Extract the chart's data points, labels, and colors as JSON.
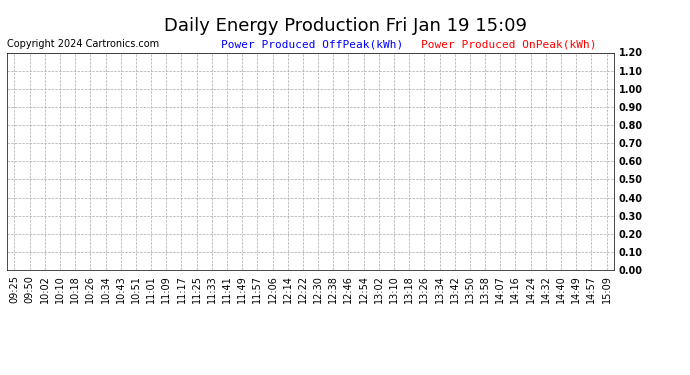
{
  "title": "Daily Energy Production Fri Jan 19 15:09",
  "copyright_text": "Copyright 2024 Cartronics.com",
  "legend_offpeak_label": "Power Produced OffPeak(kWh)",
  "legend_onpeak_label": "Power Produced OnPeak(kWh)",
  "legend_offpeak_color": "#0000ff",
  "legend_onpeak_color": "#ff0000",
  "ylim": [
    0.0,
    1.2
  ],
  "yticks": [
    0.0,
    0.1,
    0.2,
    0.3,
    0.4,
    0.5,
    0.6,
    0.7,
    0.8,
    0.9,
    1.0,
    1.1,
    1.2
  ],
  "ytick_labels": [
    "0.00",
    "0.10",
    "0.20",
    "0.30",
    "0.40",
    "0.50",
    "0.60",
    "0.70",
    "0.80",
    "0.90",
    "1.00",
    "1.10",
    "1.20"
  ],
  "x_labels": [
    "09:25",
    "09:50",
    "10:02",
    "10:10",
    "10:18",
    "10:26",
    "10:34",
    "10:43",
    "10:51",
    "11:01",
    "11:09",
    "11:17",
    "11:25",
    "11:33",
    "11:41",
    "11:49",
    "11:57",
    "12:06",
    "12:14",
    "12:22",
    "12:30",
    "12:38",
    "12:46",
    "12:54",
    "13:02",
    "13:10",
    "13:18",
    "13:26",
    "13:34",
    "13:42",
    "13:50",
    "13:58",
    "14:07",
    "14:16",
    "14:24",
    "14:32",
    "14:40",
    "14:49",
    "14:57",
    "15:09"
  ],
  "background_color": "#ffffff",
  "grid_color": "#aaaaaa",
  "title_fontsize": 13,
  "copyright_fontsize": 7,
  "legend_fontsize": 8,
  "tick_fontsize": 7,
  "title_color": "#000000",
  "tick_label_color": "#000000",
  "fig_width": 6.9,
  "fig_height": 3.75,
  "fig_dpi": 100
}
